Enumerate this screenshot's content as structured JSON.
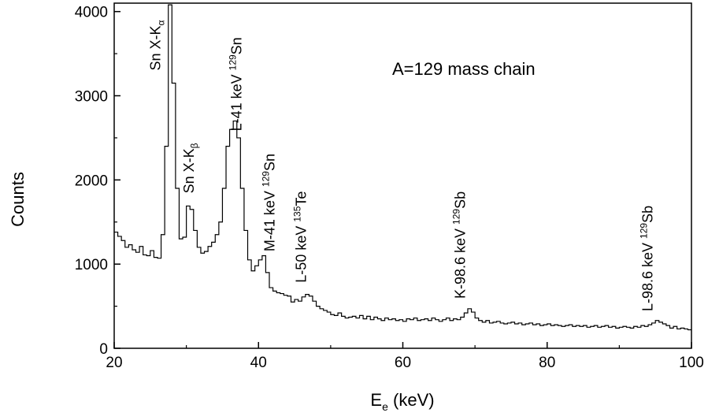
{
  "chart_data": {
    "type": "line",
    "title": "A=129 mass chain",
    "xlabel": "E",
    "xlabel_sub": "e",
    "xlabel_unit": " (keV)",
    "ylabel": "Counts",
    "xlim": [
      20,
      100
    ],
    "ylim": [
      0,
      4100
    ],
    "xticks": [
      20,
      40,
      60,
      80,
      100
    ],
    "yticks": [
      0,
      1000,
      2000,
      3000,
      4000
    ],
    "grid": false,
    "series": [
      {
        "style": "histogram",
        "bin_width": 0.5,
        "x": [
          20.0,
          20.5,
          21.0,
          21.5,
          22.0,
          22.5,
          23.0,
          23.5,
          24.0,
          24.5,
          25.0,
          25.5,
          26.0,
          26.5,
          27.0,
          27.5,
          28.0,
          28.5,
          29.0,
          29.5,
          30.0,
          30.5,
          31.0,
          31.5,
          32.0,
          32.5,
          33.0,
          33.5,
          34.0,
          34.5,
          35.0,
          35.5,
          36.0,
          36.5,
          37.0,
          37.5,
          38.0,
          38.5,
          39.0,
          39.5,
          40.0,
          40.5,
          41.0,
          41.5,
          42.0,
          42.5,
          43.0,
          43.5,
          44.0,
          44.5,
          45.0,
          45.5,
          46.0,
          46.5,
          47.0,
          47.5,
          48.0,
          48.5,
          49.0,
          49.5,
          50.0,
          50.5,
          51.0,
          51.5,
          52.0,
          52.5,
          53.0,
          53.5,
          54.0,
          54.5,
          55.0,
          55.5,
          56.0,
          56.5,
          57.0,
          57.5,
          58.0,
          58.5,
          59.0,
          59.5,
          60.0,
          60.5,
          61.0,
          61.5,
          62.0,
          62.5,
          63.0,
          63.5,
          64.0,
          64.5,
          65.0,
          65.5,
          66.0,
          66.5,
          67.0,
          67.5,
          68.0,
          68.5,
          69.0,
          69.5,
          70.0,
          70.5,
          71.0,
          71.5,
          72.0,
          72.5,
          73.0,
          73.5,
          74.0,
          74.5,
          75.0,
          75.5,
          76.0,
          76.5,
          77.0,
          77.5,
          78.0,
          78.5,
          79.0,
          79.5,
          80.0,
          80.5,
          81.0,
          81.5,
          82.0,
          82.5,
          83.0,
          83.5,
          84.0,
          84.5,
          85.0,
          85.5,
          86.0,
          86.5,
          87.0,
          87.5,
          88.0,
          88.5,
          89.0,
          89.5,
          90.0,
          90.5,
          91.0,
          91.5,
          92.0,
          92.5,
          93.0,
          93.5,
          94.0,
          94.5,
          95.0,
          95.5,
          96.0,
          96.5,
          97.0,
          97.5,
          98.0,
          98.5,
          99.0,
          99.5
        ],
        "y": [
          1380,
          1330,
          1280,
          1200,
          1230,
          1170,
          1140,
          1210,
          1110,
          1100,
          1160,
          1080,
          1070,
          1350,
          2400,
          4080,
          3150,
          1900,
          1300,
          1320,
          1690,
          1650,
          1400,
          1200,
          1130,
          1150,
          1210,
          1260,
          1350,
          1500,
          1900,
          2400,
          2600,
          2700,
          2500,
          1900,
          1400,
          1050,
          920,
          980,
          1050,
          1100,
          900,
          720,
          680,
          660,
          650,
          630,
          620,
          550,
          580,
          560,
          610,
          640,
          620,
          560,
          500,
          470,
          450,
          430,
          400,
          390,
          420,
          380,
          360,
          370,
          380,
          360,
          390,
          350,
          380,
          340,
          370,
          350,
          330,
          360,
          340,
          350,
          330,
          340,
          320,
          350,
          340,
          360,
          330,
          340,
          350,
          330,
          360,
          340,
          320,
          340,
          360,
          330,
          350,
          340,
          370,
          420,
          470,
          430,
          360,
          330,
          310,
          330,
          300,
          310,
          320,
          300,
          290,
          300,
          310,
          290,
          300,
          280,
          290,
          300,
          280,
          290,
          270,
          280,
          290,
          270,
          280,
          270,
          260,
          270,
          280,
          260,
          270,
          260,
          270,
          250,
          260,
          270,
          250,
          260,
          270,
          250,
          260,
          240,
          250,
          260,
          250,
          240,
          260,
          250,
          270,
          260,
          280,
          300,
          330,
          310,
          290,
          270,
          240,
          260,
          230,
          240,
          230,
          220
        ]
      }
    ],
    "annotations": [
      {
        "parts": [
          {
            "t": "Sn X-K"
          },
          {
            "t": "α",
            "sub": true
          }
        ],
        "x": 26.4,
        "y": 3300
      },
      {
        "parts": [
          {
            "t": "Sn X-K"
          },
          {
            "t": "β",
            "sub": true
          }
        ],
        "x": 31.0,
        "y": 1840
      },
      {
        "parts": [
          {
            "t": "L-41 keV "
          },
          {
            "t": "129",
            "sup": true
          },
          {
            "t": "Sn"
          }
        ],
        "x": 37.6,
        "y": 2580
      },
      {
        "parts": [
          {
            "t": "M-41 keV "
          },
          {
            "t": "129",
            "sup": true
          },
          {
            "t": "Sn"
          }
        ],
        "x": 42.2,
        "y": 1150
      },
      {
        "parts": [
          {
            "t": "L-50 keV "
          },
          {
            "t": "135",
            "sup": true
          },
          {
            "t": "Te"
          }
        ],
        "x": 46.6,
        "y": 780
      },
      {
        "parts": [
          {
            "t": "K-98.6 keV "
          },
          {
            "t": "129",
            "sup": true
          },
          {
            "t": "Sb"
          }
        ],
        "x": 68.6,
        "y": 590
      },
      {
        "parts": [
          {
            "t": "L-98.6 keV "
          },
          {
            "t": "129",
            "sup": true
          },
          {
            "t": "Sb"
          }
        ],
        "x": 94.6,
        "y": 440
      }
    ]
  }
}
